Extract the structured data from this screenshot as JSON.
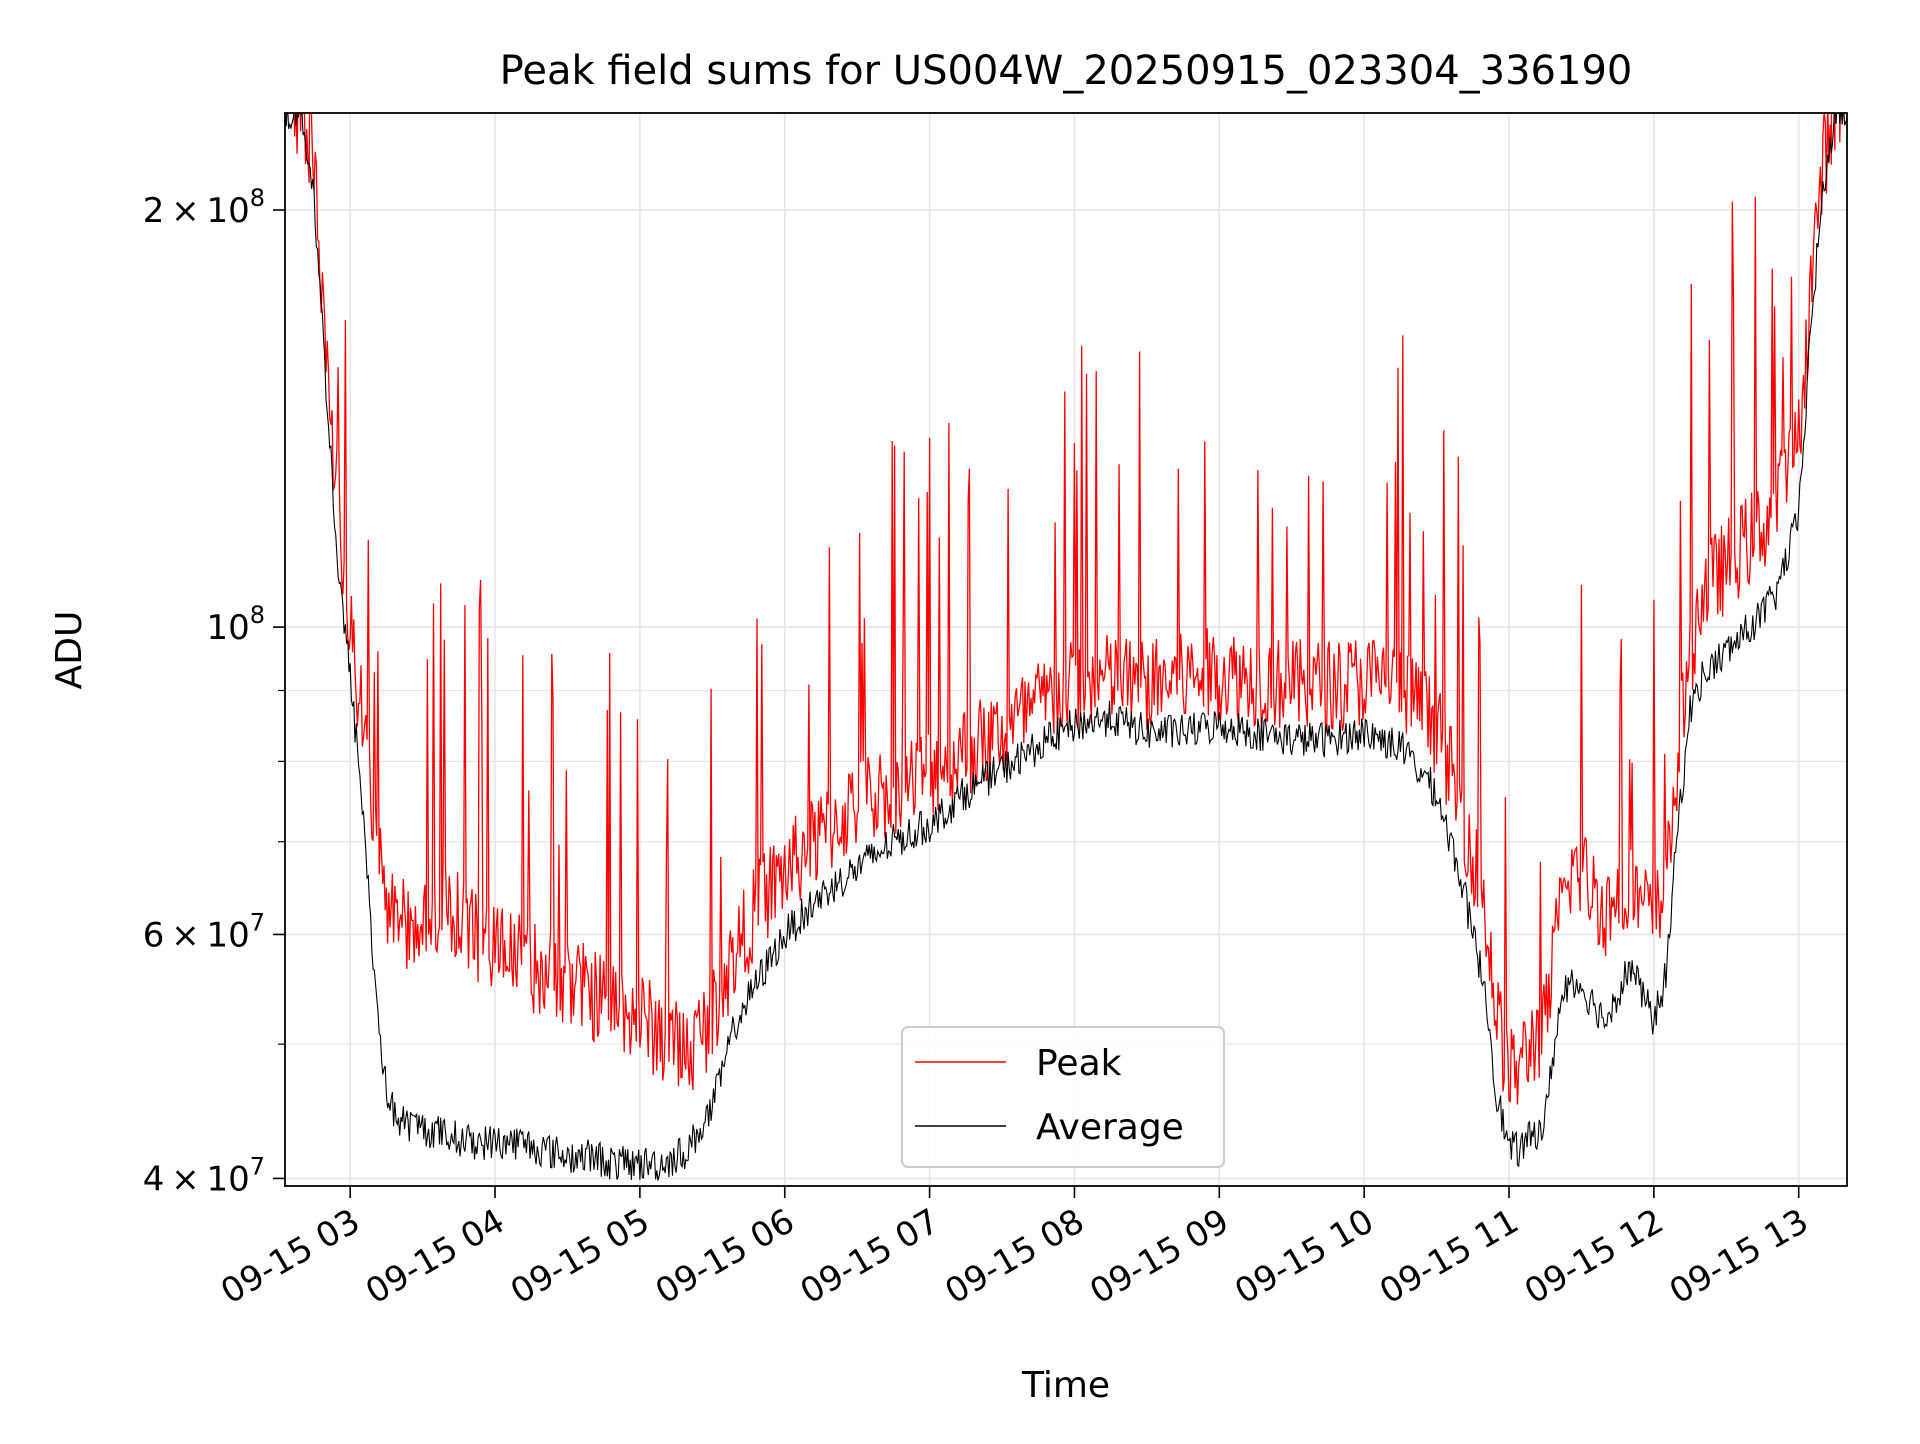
{
  "chart_data": {
    "type": "line",
    "title": "Peak field sums for US004W_20250915_023304_336190",
    "xlabel": "Time",
    "ylabel": "ADU",
    "yscale": "log",
    "ylim": [
      39500000,
      235000000
    ],
    "xlim": [
      "09-15 02:33",
      "09-15 13:20"
    ],
    "grid": true,
    "legend_position": "lower-center",
    "x_tick_labels": [
      "09-15 03",
      "09-15 04",
      "09-15 05",
      "09-15 06",
      "09-15 07",
      "09-15 08",
      "09-15 09",
      "09-15 10",
      "09-15 11",
      "09-15 12",
      "09-15 13"
    ],
    "y_tick_labels": [
      {
        "value": 200000000,
        "mantissa": "2",
        "exponent": "8"
      },
      {
        "value": 100000000,
        "mantissa": "",
        "exponent": "8"
      },
      {
        "value": 60000000,
        "mantissa": "6",
        "exponent": "7"
      },
      {
        "value": 40000000,
        "mantissa": "4",
        "exponent": "7"
      }
    ],
    "series": [
      {
        "name": "Peak",
        "color": "#ff0000",
        "x": [
          "02:33",
          "02:40",
          "02:45",
          "02:50",
          "02:55",
          "03:00",
          "03:05",
          "03:10",
          "03:15",
          "03:20",
          "03:30",
          "03:40",
          "03:50",
          "04:00",
          "04:10",
          "04:20",
          "04:30",
          "04:40",
          "04:50",
          "05:00",
          "05:10",
          "05:20",
          "05:30",
          "05:40",
          "05:50",
          "06:00",
          "06:15",
          "06:30",
          "06:45",
          "07:00",
          "07:15",
          "07:30",
          "07:45",
          "08:00",
          "08:15",
          "08:30",
          "08:45",
          "09:00",
          "09:15",
          "09:30",
          "09:45",
          "10:00",
          "10:15",
          "10:30",
          "10:40",
          "10:45",
          "10:50",
          "10:55",
          "11:00",
          "11:05",
          "11:10",
          "11:15",
          "11:20",
          "11:25",
          "11:30",
          "11:40",
          "11:50",
          "12:00",
          "12:05",
          "12:10",
          "12:15",
          "12:20",
          "12:30",
          "12:40",
          "12:50",
          "13:00",
          "13:05",
          "13:10",
          "13:15",
          "13:20"
        ],
        "y": [
          235000000,
          235000000,
          210000000,
          160000000,
          120000000,
          100000000,
          85000000,
          70000000,
          62000000,
          60000000,
          62000000,
          63000000,
          60000000,
          58000000,
          57000000,
          56000000,
          55000000,
          54000000,
          53000000,
          52000000,
          50000000,
          49000000,
          52000000,
          58000000,
          63000000,
          66000000,
          70000000,
          74000000,
          76000000,
          78000000,
          81000000,
          83000000,
          87000000,
          90000000,
          91000000,
          90000000,
          91000000,
          92000000,
          91000000,
          90000000,
          90000000,
          91000000,
          90000000,
          84000000,
          74000000,
          68000000,
          62000000,
          52000000,
          47000000,
          48000000,
          50000000,
          51000000,
          60000000,
          66000000,
          66000000,
          62000000,
          64000000,
          61000000,
          64000000,
          80000000,
          95000000,
          105000000,
          110000000,
          115000000,
          120000000,
          135000000,
          175000000,
          215000000,
          235000000,
          235000000
        ]
      },
      {
        "name": "Average",
        "color": "#000000",
        "x": [
          "02:33",
          "02:40",
          "02:45",
          "02:50",
          "02:55",
          "03:00",
          "03:05",
          "03:10",
          "03:15",
          "03:20",
          "03:30",
          "03:40",
          "03:50",
          "04:00",
          "04:10",
          "04:20",
          "04:30",
          "04:40",
          "04:50",
          "05:00",
          "05:10",
          "05:20",
          "05:30",
          "05:40",
          "05:50",
          "06:00",
          "06:15",
          "06:30",
          "06:45",
          "07:00",
          "07:15",
          "07:30",
          "07:45",
          "08:00",
          "08:15",
          "08:30",
          "08:45",
          "09:00",
          "09:15",
          "09:30",
          "09:45",
          "10:00",
          "10:15",
          "10:30",
          "10:40",
          "10:45",
          "10:50",
          "10:55",
          "11:00",
          "11:05",
          "11:10",
          "11:15",
          "11:20",
          "11:25",
          "11:30",
          "11:40",
          "11:50",
          "12:00",
          "12:05",
          "12:10",
          "12:15",
          "12:20",
          "12:30",
          "12:40",
          "12:50",
          "13:00",
          "13:05",
          "13:10",
          "13:15",
          "13:20"
        ],
        "y": [
          235000000,
          235000000,
          205000000,
          150000000,
          110000000,
          92000000,
          75000000,
          56000000,
          46000000,
          44000000,
          43500000,
          43000000,
          42500000,
          42500000,
          42500000,
          42000000,
          41500000,
          41500000,
          41000000,
          41000000,
          41000000,
          42000000,
          45000000,
          52000000,
          56000000,
          60000000,
          64000000,
          67000000,
          70000000,
          72000000,
          76000000,
          79000000,
          82000000,
          85000000,
          86000000,
          84000000,
          84000000,
          85000000,
          84000000,
          83000000,
          83000000,
          84000000,
          82000000,
          76000000,
          66000000,
          60000000,
          55000000,
          46000000,
          42000000,
          42000000,
          43000000,
          44000000,
          52000000,
          56000000,
          55000000,
          52000000,
          57000000,
          52000000,
          56000000,
          72000000,
          87000000,
          92000000,
          96000000,
          100000000,
          105000000,
          120000000,
          165000000,
          205000000,
          235000000,
          235000000
        ]
      }
    ]
  }
}
